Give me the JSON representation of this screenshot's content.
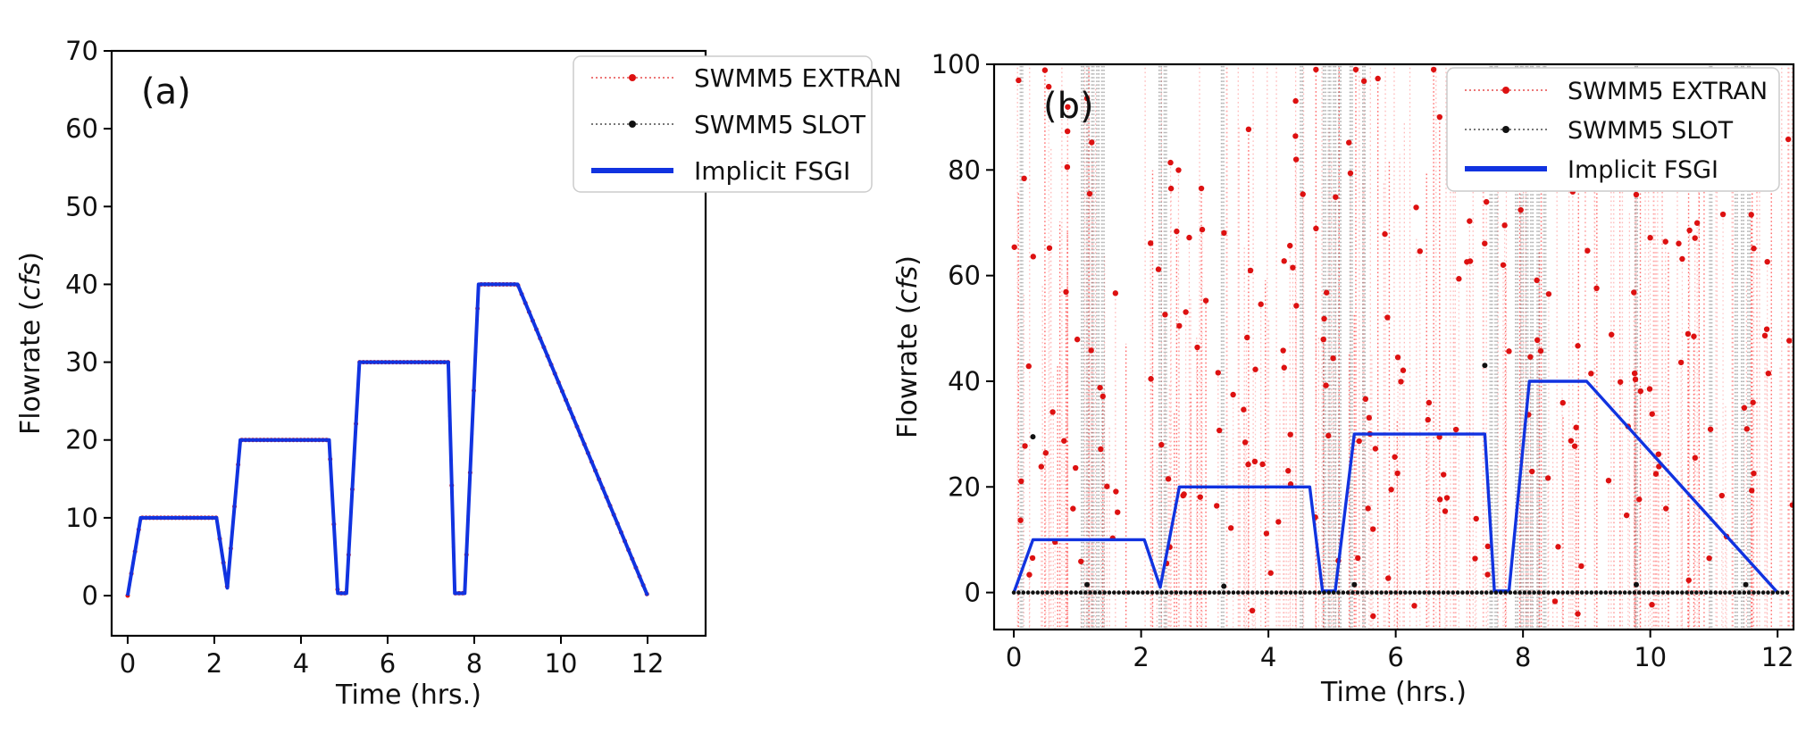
{
  "figure": {
    "background": "#ffffff",
    "description": "Comparison of flowrate time series from SWMM5 EXTRAN, SWMM5 SLOT and Implicit FSGI models",
    "colors": {
      "extran": "#dd1111",
      "extran_line": "#ff8080",
      "slot": "#111111",
      "slot_line": "#444444",
      "fsgi": "#1133e0",
      "legend_border": "#cccccc"
    }
  },
  "chart_data": [
    {
      "id": "a",
      "type": "line",
      "panel_label": "(a)",
      "xlabel": "Time (hrs.)",
      "ylabel_prefix": "Flowrate (",
      "ylabel_italic": "cfs",
      "ylabel_suffix": ")",
      "xlim": [
        -0.37,
        13.34
      ],
      "ylim": [
        -5.16,
        70
      ],
      "xticks": [
        0,
        2,
        4,
        6,
        8,
        10,
        12
      ],
      "yticks": [
        0,
        10,
        20,
        30,
        40,
        50,
        60,
        70
      ],
      "legend_position": "upper right",
      "legend": [
        {
          "label": "SWMM5 EXTRAN",
          "color": "#dd1111",
          "style": "dotted-marker"
        },
        {
          "label": "SWMM5 SLOT",
          "color": "#111111",
          "style": "dotted-marker"
        },
        {
          "label": "Implicit FSGI",
          "color": "#1133e0",
          "style": "solid"
        }
      ],
      "series": [
        {
          "name": "SWMM5 EXTRAN",
          "color": "#dd1111",
          "style": "dotted line with round markers",
          "coincides_with": "Implicit FSGI",
          "points": [
            [
              0,
              0
            ],
            [
              0.3,
              10
            ],
            [
              2.05,
              10
            ],
            [
              2.3,
              1
            ],
            [
              2.6,
              20
            ],
            [
              4.65,
              20
            ],
            [
              4.85,
              0.3
            ],
            [
              5.05,
              0.3
            ],
            [
              5.35,
              30
            ],
            [
              7.4,
              30
            ],
            [
              7.55,
              0.3
            ],
            [
              7.78,
              0.3
            ],
            [
              8.1,
              40
            ],
            [
              9.0,
              40
            ],
            [
              12.0,
              0
            ]
          ]
        },
        {
          "name": "SWMM5 SLOT",
          "color": "#111111",
          "style": "dotted line with small markers",
          "coincides_with": "Implicit FSGI",
          "points": [
            [
              0,
              0
            ],
            [
              0.3,
              10
            ],
            [
              2.05,
              10
            ],
            [
              2.3,
              1
            ],
            [
              2.6,
              20
            ],
            [
              4.65,
              20
            ],
            [
              4.85,
              0.3
            ],
            [
              5.05,
              0.3
            ],
            [
              5.35,
              30
            ],
            [
              7.4,
              30
            ],
            [
              7.55,
              0.3
            ],
            [
              7.78,
              0.3
            ],
            [
              8.1,
              40
            ],
            [
              9.0,
              40
            ],
            [
              12.0,
              0
            ]
          ]
        },
        {
          "name": "Implicit FSGI",
          "color": "#1133e0",
          "style": "solid thick line",
          "points": [
            [
              0,
              0
            ],
            [
              0.3,
              10
            ],
            [
              2.05,
              10
            ],
            [
              2.3,
              1
            ],
            [
              2.6,
              20
            ],
            [
              4.65,
              20
            ],
            [
              4.85,
              0.3
            ],
            [
              5.05,
              0.3
            ],
            [
              5.35,
              30
            ],
            [
              7.4,
              30
            ],
            [
              7.55,
              0.3
            ],
            [
              7.78,
              0.3
            ],
            [
              8.1,
              40
            ],
            [
              9.0,
              40
            ],
            [
              12.0,
              0
            ]
          ]
        }
      ]
    },
    {
      "id": "b",
      "type": "line",
      "panel_label": "(b)",
      "xlabel": "Time (hrs.)",
      "ylabel_prefix": "Flowrate (",
      "ylabel_italic": "cfs",
      "ylabel_suffix": ")",
      "xlim": [
        -0.31,
        12.25
      ],
      "ylim": [
        -7.0,
        100
      ],
      "xticks": [
        0,
        2,
        4,
        6,
        8,
        10,
        12
      ],
      "yticks": [
        0,
        20,
        40,
        60,
        80,
        100
      ],
      "legend_position": "upper right",
      "legend": [
        {
          "label": "SWMM5 EXTRAN",
          "color": "#dd1111",
          "style": "dotted-marker"
        },
        {
          "label": "SWMM5 SLOT",
          "color": "#111111",
          "style": "dotted-marker"
        },
        {
          "label": "Implicit FSGI",
          "color": "#1133e0",
          "style": "solid"
        }
      ],
      "series": [
        {
          "name": "SWMM5 EXTRAN",
          "color": "#dd1111",
          "style": "dotted line with round markers",
          "behavior": "unstable high-frequency oscillation spanning roughly -6 to >100 cfs over 0-12.25 hrs",
          "noise": {
            "seed": 20227,
            "n_verticals": 175,
            "n_strong_verticals": 48,
            "n_markers": 155,
            "x_max": 12.25,
            "full_height_fraction": 0.32,
            "vertical_top_min": 18,
            "vertical_top_max": 98,
            "marker_y_bands": [
              [
                2,
                44,
                0.55
              ],
              [
                44,
                77,
                0.3
              ],
              [
                78,
                99,
                0.11
              ],
              [
                -4.5,
                -0.5,
                0.04
              ]
            ]
          }
        },
        {
          "name": "SWMM5 SLOT",
          "color": "#111111",
          "style": "dotted line with small markers",
          "behavior": "flow near zero with intermittent full-height oscillation bursts",
          "baseline_y": 0,
          "baseline_step": 0.075,
          "baseline_end": 12.2,
          "spike_times": [
            0.12,
            1.08,
            1.16,
            1.24,
            1.32,
            1.4,
            2.3,
            2.38,
            3.28,
            4.52,
            4.88,
            4.96,
            5.04,
            5.12,
            5.3,
            5.5,
            7.5,
            7.58,
            7.9,
            7.98,
            8.06,
            8.14,
            8.24,
            8.34,
            9.78,
            10.95,
            11.35,
            11.45,
            11.55
          ],
          "isolated_points": [
            [
              0.3,
              29.5
            ],
            [
              1.15,
              1.5
            ],
            [
              3.3,
              1.2
            ],
            [
              5.35,
              1.5
            ],
            [
              7.4,
              43
            ],
            [
              9.78,
              1.5
            ],
            [
              11.5,
              1.5
            ]
          ]
        },
        {
          "name": "Implicit FSGI",
          "color": "#1133e0",
          "style": "solid thick line",
          "points": [
            [
              0,
              0
            ],
            [
              0.3,
              10
            ],
            [
              2.05,
              10
            ],
            [
              2.3,
              1
            ],
            [
              2.6,
              20
            ],
            [
              4.65,
              20
            ],
            [
              4.85,
              0.3
            ],
            [
              5.05,
              0.3
            ],
            [
              5.35,
              30
            ],
            [
              7.4,
              30
            ],
            [
              7.55,
              0.3
            ],
            [
              7.78,
              0.3
            ],
            [
              8.1,
              40
            ],
            [
              9.0,
              40
            ],
            [
              12.0,
              0
            ]
          ]
        }
      ]
    }
  ]
}
